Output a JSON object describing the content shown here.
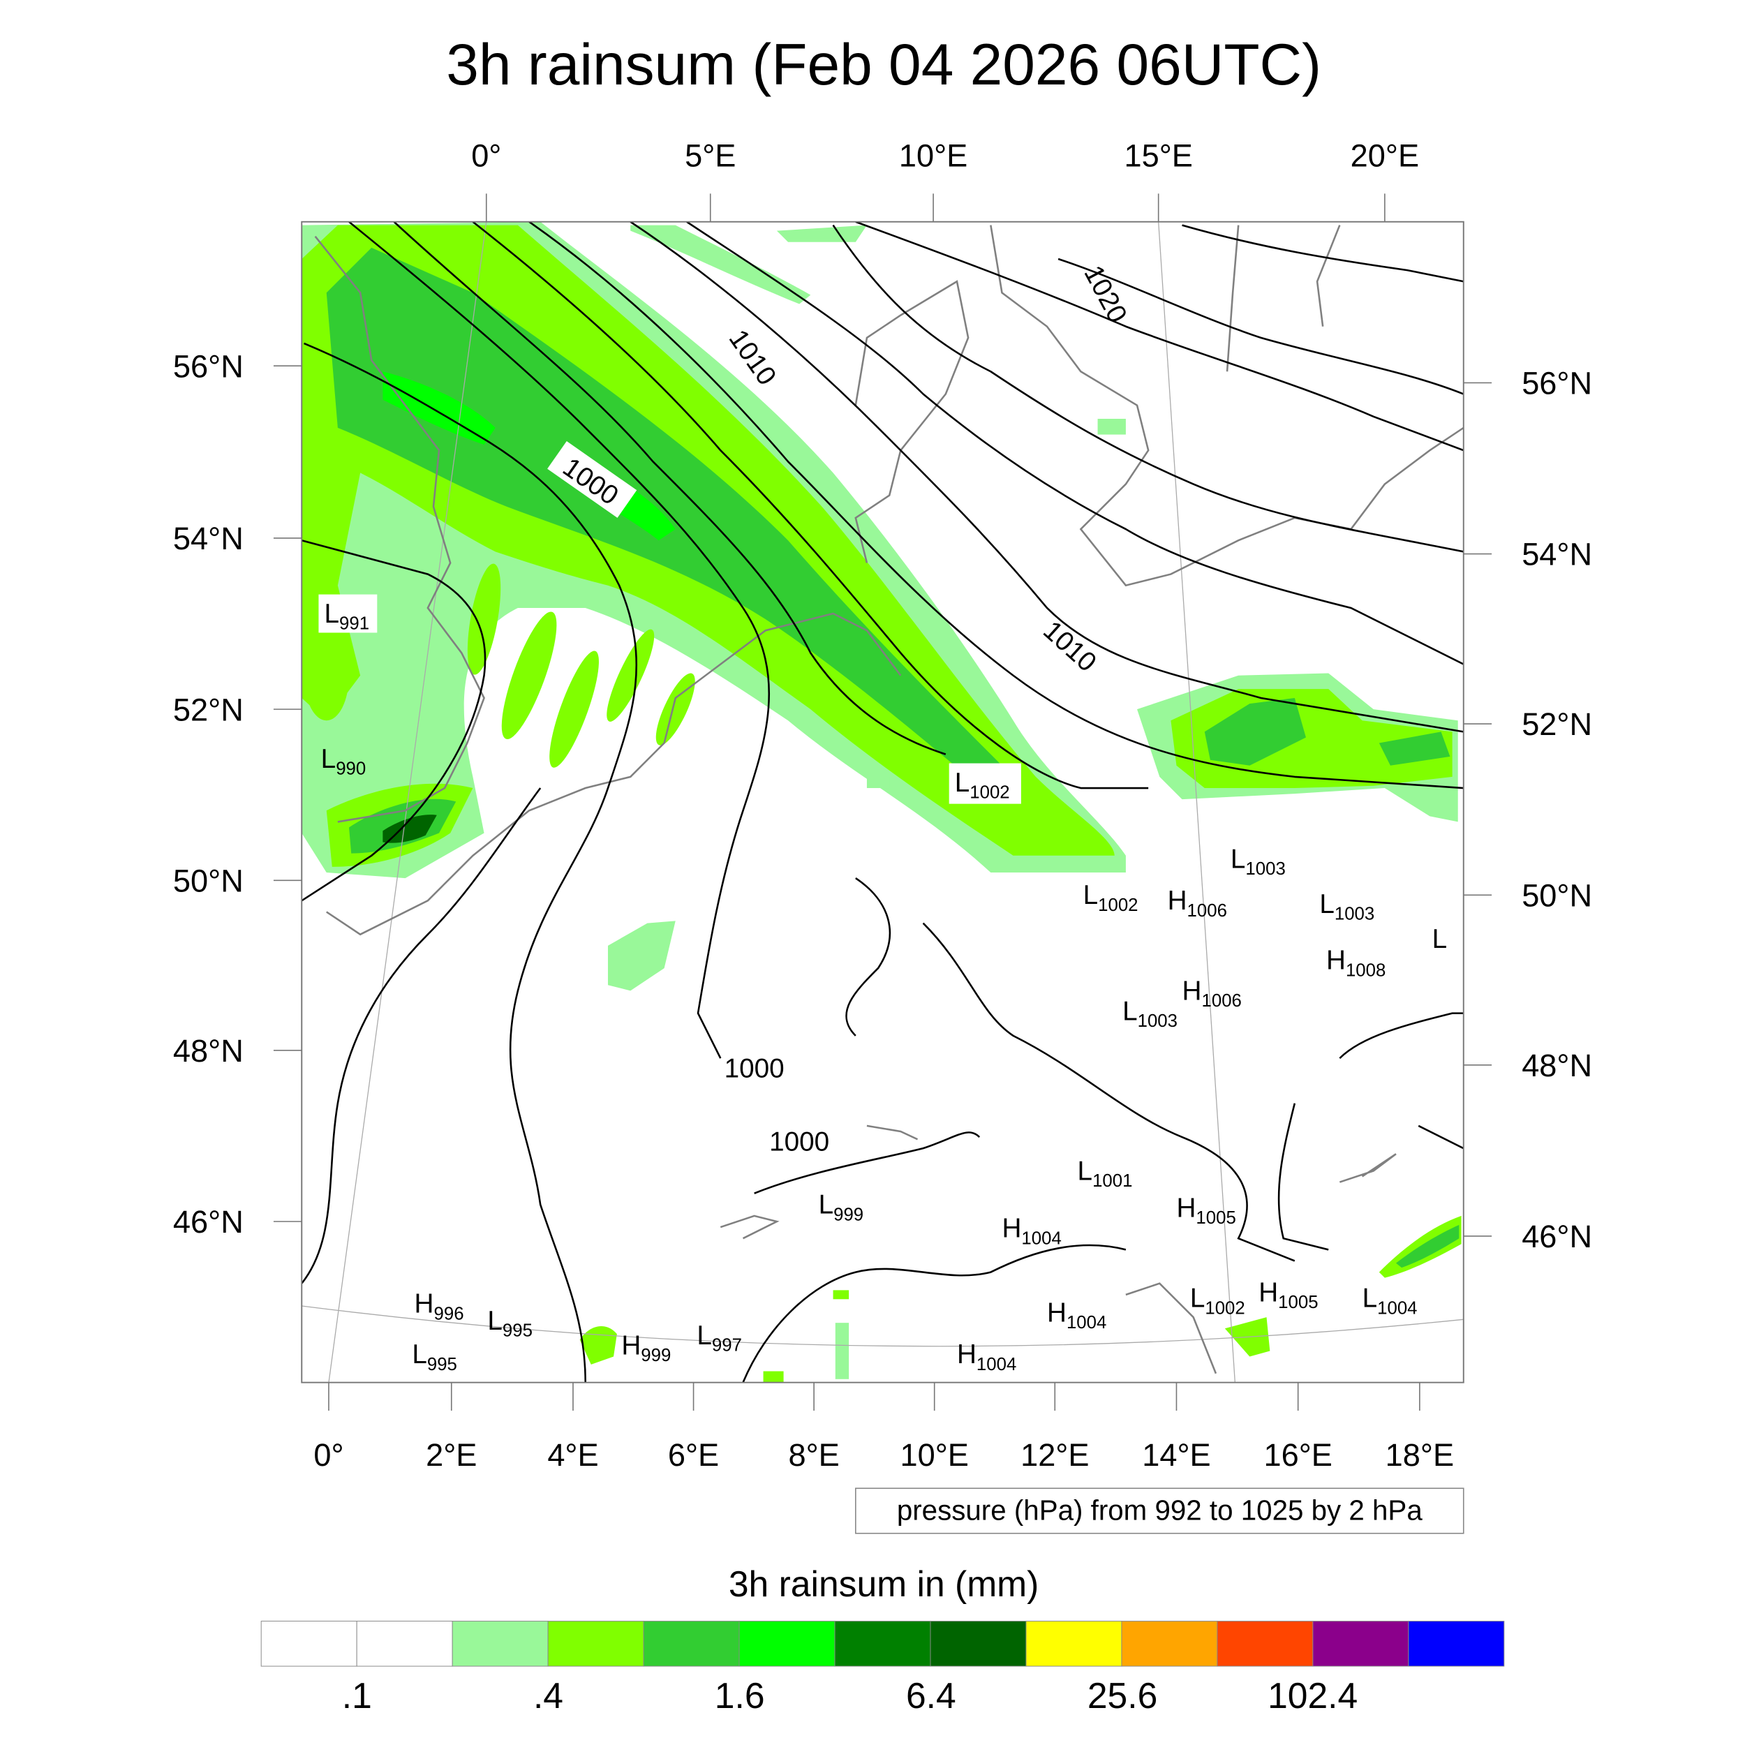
{
  "title": "3h rainsum (Feb 04 2026 06UTC)",
  "axes": {
    "top_lon": [
      "0°",
      "5°E",
      "10°E",
      "15°E",
      "20°E"
    ],
    "bottom_lon": [
      "0°",
      "2°E",
      "4°E",
      "6°E",
      "8°E",
      "10°E",
      "12°E",
      "14°E",
      "16°E",
      "18°E"
    ],
    "left_lat": [
      "56°N",
      "54°N",
      "52°N",
      "50°N",
      "48°N",
      "46°N"
    ],
    "right_lat": [
      "56°N",
      "54°N",
      "52°N",
      "50°N",
      "48°N",
      "46°N"
    ]
  },
  "map": {
    "contour_labels": [
      "1020",
      "1010",
      "1000",
      "1010",
      "1000",
      "1000"
    ],
    "centers": [
      {
        "type": "L",
        "value": "991"
      },
      {
        "type": "L",
        "value": "990"
      },
      {
        "type": "L",
        "value": "1002"
      },
      {
        "type": "L",
        "value": "1003"
      },
      {
        "type": "L",
        "value": "1002"
      },
      {
        "type": "H",
        "value": "1006"
      },
      {
        "type": "L",
        "value": "1003"
      },
      {
        "type": "L",
        "value": ""
      },
      {
        "type": "H",
        "value": "1008"
      },
      {
        "type": "H",
        "value": "1006"
      },
      {
        "type": "L",
        "value": "1003"
      },
      {
        "type": "L",
        "value": "1001"
      },
      {
        "type": "H",
        "value": "1005"
      },
      {
        "type": "L",
        "value": "999"
      },
      {
        "type": "H",
        "value": "1004"
      },
      {
        "type": "H",
        "value": "996"
      },
      {
        "type": "L",
        "value": "995"
      },
      {
        "type": "L",
        "value": "995"
      },
      {
        "type": "H",
        "value": "999"
      },
      {
        "type": "L",
        "value": "997"
      },
      {
        "type": "H",
        "value": "1004"
      },
      {
        "type": "L",
        "value": "1002"
      },
      {
        "type": "H",
        "value": "1005"
      },
      {
        "type": "L",
        "value": "1004"
      },
      {
        "type": "H",
        "value": "1004"
      }
    ],
    "rain_colors": {
      "light": "#99f899",
      "lime": "#80ff00",
      "mid": "#32cd32",
      "bright": "#00ff00",
      "dark": "#008000",
      "darker": "#006400"
    }
  },
  "contour_info": "pressure (hPa) from 992 to 1025 by 2 hPa",
  "colorbar": {
    "title": "3h rainsum in (mm)",
    "colors": [
      "#ffffff",
      "#ffffff",
      "#99f899",
      "#80ff00",
      "#32cd32",
      "#00ff00",
      "#008000",
      "#006400",
      "#ffff00",
      "#ffa500",
      "#ff4500",
      "#8b008b",
      "#0000ff"
    ],
    "labels": [
      ".1",
      ".4",
      "1.6",
      "6.4",
      "25.6",
      "102.4"
    ]
  }
}
